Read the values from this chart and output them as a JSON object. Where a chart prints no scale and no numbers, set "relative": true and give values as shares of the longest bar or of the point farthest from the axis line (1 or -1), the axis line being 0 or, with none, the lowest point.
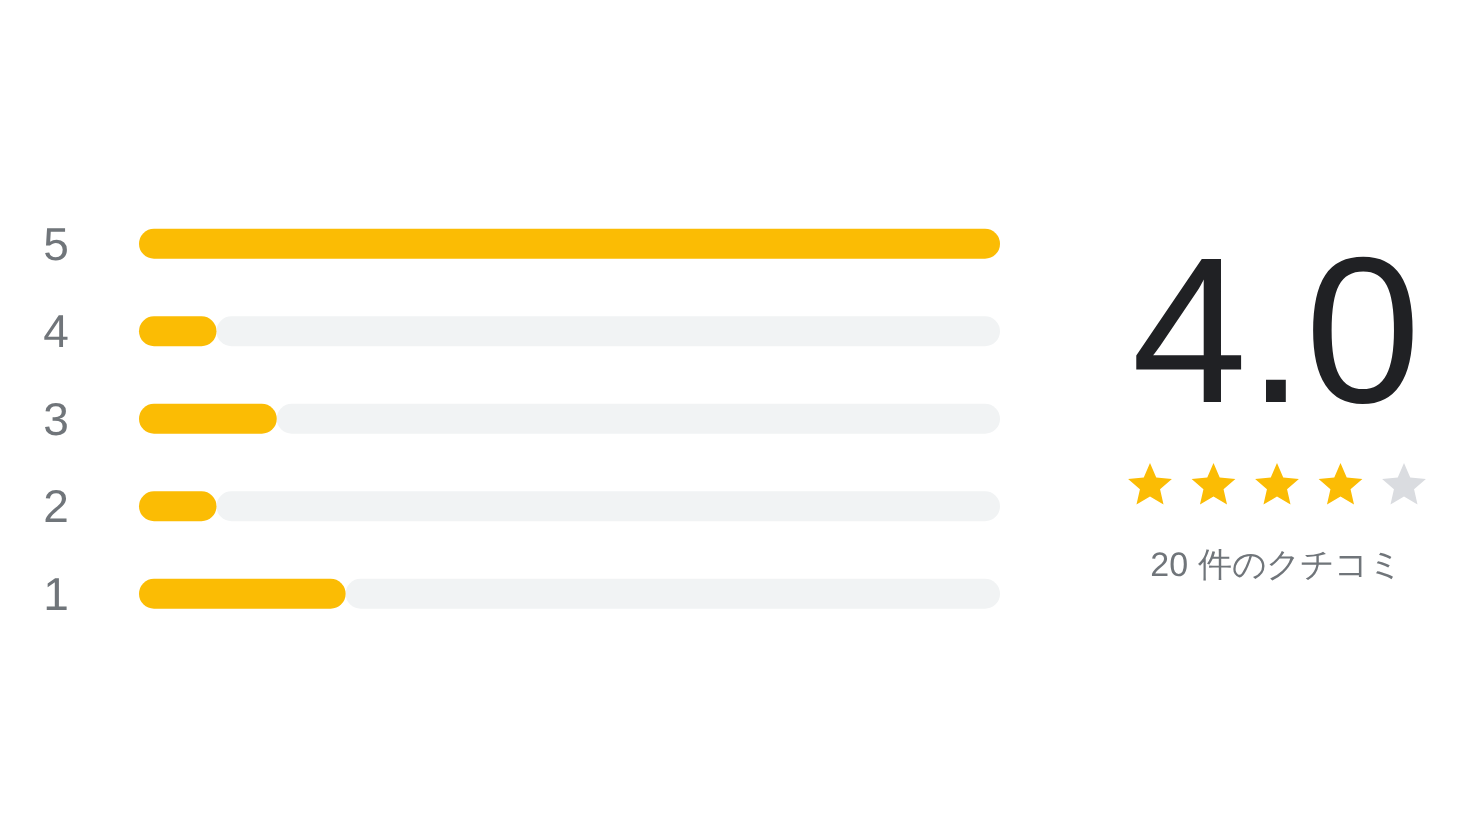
{
  "chart_data": [
    {
      "type": "bar",
      "orientation": "horizontal",
      "stacked": true,
      "relative": true,
      "categories": [
        "5",
        "4",
        "3",
        "2",
        "1"
      ],
      "series": [
        {
          "color": "#fbbc04",
          "values": [
            1,
            0.09,
            0.16,
            0.09,
            0.24
          ]
        },
        {
          "color": "#f1f3f4",
          "values": [
            0,
            0.91,
            0.84,
            0.91,
            0.76
          ]
        }
      ]
    },
    {
      "type": "other",
      "values": [
        4.0
      ],
      "value_labels": [
        "4.0"
      ],
      "colors": [
        "#fbbc04"
      ],
      "annotations": [
        "20 件のクチコミ"
      ]
    }
  ]
}
